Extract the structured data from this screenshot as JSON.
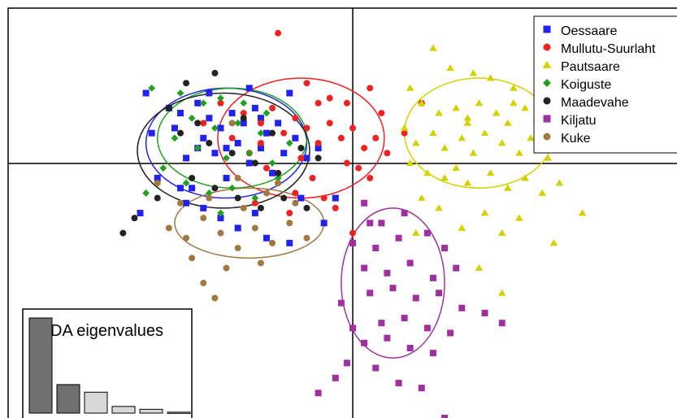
{
  "chart_data": {
    "type": "scatter",
    "title": "",
    "xlabel": "",
    "ylabel": "",
    "xlim": [
      -6,
      6
    ],
    "ylim": [
      -5,
      3.2
    ],
    "axes_cross_at": [
      0,
      0
    ],
    "legend_position": "top-right",
    "grid": false,
    "series": [
      {
        "name": "Oessaare",
        "color": "#2222ee",
        "marker": "square",
        "ellipse": {
          "cx": -2.2,
          "cy": 0.5,
          "rx": 1.4,
          "ry": 1.1
        },
        "points": [
          [
            -3.6,
            1.5
          ],
          [
            -3.5,
            0.7
          ],
          [
            -3.2,
            1.2
          ],
          [
            -3.1,
            0.8
          ],
          [
            -3.0,
            1.1
          ],
          [
            -2.9,
            0.2
          ],
          [
            -2.8,
            -0.4
          ],
          [
            -2.7,
            1.3
          ],
          [
            -2.6,
            0.6
          ],
          [
            -2.5,
            1.0
          ],
          [
            -2.4,
            0.3
          ],
          [
            -2.3,
            0.8
          ],
          [
            -2.2,
            -0.2
          ],
          [
            -2.1,
            1.1
          ],
          [
            -2.0,
            0.5
          ],
          [
            -1.9,
            0.9
          ],
          [
            -1.8,
            0.1
          ],
          [
            -1.7,
            1.2
          ],
          [
            -1.6,
            0.4
          ],
          [
            -1.5,
            0.7
          ],
          [
            -1.4,
            -0.1
          ],
          [
            -1.3,
            0.9
          ],
          [
            -1.2,
            0.3
          ],
          [
            -1.1,
            1.5
          ],
          [
            -1.0,
            0.6
          ],
          [
            -0.9,
            -0.6
          ],
          [
            -0.8,
            0.2
          ],
          [
            -2.9,
            -0.7
          ],
          [
            -2.6,
            -0.8
          ],
          [
            -2.3,
            -1.0
          ],
          [
            -2.0,
            -1.2
          ],
          [
            -1.7,
            -0.9
          ],
          [
            -1.5,
            -1.4
          ],
          [
            -1.1,
            -1.5
          ],
          [
            -3.4,
            -0.2
          ],
          [
            -3.7,
            -0.9
          ],
          [
            -1.8,
            1.6
          ],
          [
            -2.5,
            1.5
          ],
          [
            -0.5,
            -1.1
          ],
          [
            -0.3,
            -0.6
          ],
          [
            -2.7,
            0.4
          ],
          [
            -2.2,
            0.4
          ],
          [
            -1.6,
            1.0
          ],
          [
            -0.6,
            0.4
          ],
          [
            -3.0,
            -0.4
          ]
        ]
      },
      {
        "name": "Mullutu-Suurlaht",
        "color": "#ee2222",
        "marker": "circle",
        "ellipse": {
          "cx": -0.9,
          "cy": 0.6,
          "rx": 1.45,
          "ry": 1.2
        },
        "points": [
          [
            -1.3,
            2.7
          ],
          [
            -0.8,
            1.7
          ],
          [
            -0.4,
            1.4
          ],
          [
            -0.1,
            1.3
          ],
          [
            0.3,
            1.6
          ],
          [
            -1.9,
            1.1
          ],
          [
            -1.6,
            0.9
          ],
          [
            -1.4,
            1.2
          ],
          [
            -1.2,
            0.7
          ],
          [
            -1.0,
            1.0
          ],
          [
            -0.8,
            0.8
          ],
          [
            -0.6,
            0.5
          ],
          [
            -0.4,
            0.9
          ],
          [
            -0.2,
            0.6
          ],
          [
            0.0,
            0.8
          ],
          [
            0.2,
            0.4
          ],
          [
            0.4,
            0.6
          ],
          [
            0.6,
            0.3
          ],
          [
            0.9,
            0.7
          ],
          [
            -2.1,
            0.6
          ],
          [
            -1.8,
            0.3
          ],
          [
            -1.5,
            0.0
          ],
          [
            -1.3,
            -0.3
          ],
          [
            -1.0,
            -0.5
          ],
          [
            -0.7,
            -0.2
          ],
          [
            -0.5,
            -0.6
          ],
          [
            -0.3,
            -0.8
          ],
          [
            -0.1,
            0.1
          ],
          [
            0.1,
            0.0
          ],
          [
            0.3,
            -0.2
          ],
          [
            -2.3,
            1.3
          ],
          [
            -2.6,
            0.9
          ],
          [
            -1.7,
            -0.7
          ],
          [
            -1.1,
            -0.9
          ],
          [
            0.0,
            -1.3
          ],
          [
            0.5,
            1.1
          ],
          [
            1.2,
            1.3
          ],
          [
            -0.6,
            1.3
          ],
          [
            -1.6,
            0.5
          ],
          [
            -0.9,
            0.2
          ]
        ]
      },
      {
        "name": "Pautsaare",
        "color": "#d2d200",
        "marker": "triangle",
        "ellipse": {
          "cx": 2.2,
          "cy": 0.7,
          "rx": 1.3,
          "ry": 1.1
        },
        "points": [
          [
            1.4,
            2.4
          ],
          [
            1.7,
            2.0
          ],
          [
            2.1,
            1.9
          ],
          [
            2.4,
            1.8
          ],
          [
            2.8,
            1.6
          ],
          [
            3.3,
            1.8
          ],
          [
            3.8,
            1.7
          ],
          [
            4.1,
            1.4
          ],
          [
            4.3,
            1.0
          ],
          [
            1.0,
            1.6
          ],
          [
            1.2,
            1.3
          ],
          [
            1.5,
            1.1
          ],
          [
            1.8,
            1.2
          ],
          [
            2.0,
            1.0
          ],
          [
            2.2,
            1.3
          ],
          [
            2.5,
            1.1
          ],
          [
            2.7,
            0.9
          ],
          [
            3.0,
            1.2
          ],
          [
            3.2,
            1.0
          ],
          [
            3.5,
            0.8
          ],
          [
            0.9,
            0.8
          ],
          [
            1.1,
            0.5
          ],
          [
            1.4,
            0.7
          ],
          [
            1.6,
            0.4
          ],
          [
            1.9,
            0.6
          ],
          [
            2.1,
            0.3
          ],
          [
            2.3,
            0.7
          ],
          [
            2.6,
            0.5
          ],
          [
            2.9,
            0.3
          ],
          [
            3.1,
            0.6
          ],
          [
            3.4,
            0.2
          ],
          [
            3.7,
            0.4
          ],
          [
            1.0,
            0.1
          ],
          [
            1.3,
            -0.1
          ],
          [
            1.6,
            -0.2
          ],
          [
            1.8,
            0.0
          ],
          [
            2.0,
            -0.3
          ],
          [
            2.4,
            -0.1
          ],
          [
            2.7,
            -0.4
          ],
          [
            3.0,
            -0.2
          ],
          [
            3.3,
            -0.5
          ],
          [
            3.6,
            -0.3
          ],
          [
            1.2,
            -0.6
          ],
          [
            1.5,
            -0.8
          ],
          [
            2.3,
            -0.9
          ],
          [
            2.9,
            -1.0
          ],
          [
            4.0,
            -0.9
          ],
          [
            1.9,
            -1.2
          ],
          [
            2.6,
            -1.3
          ],
          [
            3.5,
            -1.5
          ],
          [
            2.2,
            -2.0
          ],
          [
            2.6,
            -2.5
          ],
          [
            1.1,
            -1.3
          ],
          [
            2.0,
            0.9
          ],
          [
            2.8,
            1.3
          ]
        ]
      },
      {
        "name": "Koiguste",
        "color": "#22a022",
        "marker": "diamond",
        "ellipse": {
          "cx": -2.1,
          "cy": 0.6,
          "rx": 1.3,
          "ry": 1.0
        },
        "points": [
          [
            -3.5,
            1.6
          ],
          [
            -3.0,
            1.5
          ],
          [
            -2.6,
            1.3
          ],
          [
            -2.3,
            1.4
          ],
          [
            -1.9,
            1.3
          ],
          [
            -2.8,
            1.0
          ],
          [
            -2.4,
            0.8
          ],
          [
            -2.0,
            0.9
          ],
          [
            -1.6,
            0.7
          ],
          [
            -3.1,
            0.6
          ],
          [
            -2.7,
            0.4
          ],
          [
            -2.2,
            0.2
          ],
          [
            -1.8,
            0.3
          ],
          [
            -1.4,
            0.1
          ],
          [
            -3.3,
            0.0
          ],
          [
            -2.9,
            -0.3
          ],
          [
            -2.5,
            -0.5
          ],
          [
            -2.1,
            -0.4
          ],
          [
            -1.7,
            -0.6
          ],
          [
            -1.3,
            -0.2
          ],
          [
            -1.1,
            0.5
          ],
          [
            -3.6,
            -0.5
          ],
          [
            -2.3,
            -0.9
          ],
          [
            -1.5,
            1.1
          ]
        ]
      },
      {
        "name": "Maadevahe",
        "color": "#222222",
        "marker": "circle",
        "ellipse": {
          "cx": -2.25,
          "cy": 0.35,
          "rx": 1.5,
          "ry": 1.15
        },
        "points": [
          [
            -2.4,
            1.9
          ],
          [
            -2.9,
            1.7
          ],
          [
            -3.2,
            1.2
          ],
          [
            -2.7,
            0.9
          ],
          [
            -3.0,
            0.7
          ],
          [
            -2.5,
            0.5
          ],
          [
            -2.1,
            0.3
          ],
          [
            -1.7,
            0.1
          ],
          [
            -1.3,
            -0.1
          ],
          [
            -0.9,
            0.4
          ],
          [
            -0.6,
            0.2
          ],
          [
            -2.8,
            -0.2
          ],
          [
            -2.4,
            -0.4
          ],
          [
            -2.0,
            -0.6
          ],
          [
            -1.6,
            -0.8
          ],
          [
            -1.2,
            -0.6
          ],
          [
            -0.8,
            -0.8
          ],
          [
            -4.0,
            -1.3
          ],
          [
            -3.8,
            -1.0
          ],
          [
            -1.9,
            1.0
          ],
          [
            -1.4,
            0.7
          ],
          [
            -3.4,
            -0.6
          ]
        ]
      },
      {
        "name": "Kiljatu",
        "color": "#a030a0",
        "marker": "square",
        "ellipse": {
          "cx": 0.7,
          "cy": -2.3,
          "rx": 0.9,
          "ry": 1.5
        },
        "points": [
          [
            0.2,
            -0.7
          ],
          [
            0.5,
            -1.1
          ],
          [
            0.9,
            -0.9
          ],
          [
            0.0,
            -1.5
          ],
          [
            0.4,
            -1.6
          ],
          [
            0.8,
            -1.4
          ],
          [
            1.3,
            -1.3
          ],
          [
            1.6,
            -1.6
          ],
          [
            0.2,
            -2.0
          ],
          [
            0.6,
            -2.1
          ],
          [
            1.0,
            -1.9
          ],
          [
            1.4,
            -2.2
          ],
          [
            0.3,
            -2.5
          ],
          [
            0.7,
            -2.4
          ],
          [
            1.1,
            -2.6
          ],
          [
            1.5,
            -2.5
          ],
          [
            1.9,
            -2.8
          ],
          [
            -0.2,
            -2.7
          ],
          [
            0.5,
            -3.1
          ],
          [
            0.9,
            -3.0
          ],
          [
            1.3,
            -3.2
          ],
          [
            1.7,
            -3.3
          ],
          [
            0.2,
            -3.5
          ],
          [
            0.6,
            -3.4
          ],
          [
            1.0,
            -3.6
          ],
          [
            1.4,
            -3.7
          ],
          [
            0.4,
            -4.0
          ],
          [
            0.8,
            -4.3
          ],
          [
            1.2,
            -4.4
          ],
          [
            -0.3,
            -4.2
          ],
          [
            -0.6,
            -4.5
          ],
          [
            1.6,
            -5.0
          ],
          [
            -0.1,
            -3.9
          ],
          [
            2.3,
            -2.9
          ],
          [
            2.6,
            -3.1
          ],
          [
            1.8,
            -2.0
          ],
          [
            0.0,
            -3.2
          ],
          [
            0.3,
            -1.1
          ]
        ]
      },
      {
        "name": "Kuke",
        "color": "#a07840",
        "marker": "circle",
        "ellipse": {
          "cx": -1.8,
          "cy": -1.1,
          "rx": 1.3,
          "ry": 0.7
        },
        "points": [
          [
            -3.2,
            -1.2
          ],
          [
            -2.9,
            -1.4
          ],
          [
            -2.6,
            -1.0
          ],
          [
            -2.3,
            -1.3
          ],
          [
            -2.0,
            -1.6
          ],
          [
            -1.7,
            -1.2
          ],
          [
            -1.4,
            -1.5
          ],
          [
            -1.1,
            -1.1
          ],
          [
            -0.8,
            -1.4
          ],
          [
            -3.0,
            -0.7
          ],
          [
            -2.5,
            -0.6
          ],
          [
            -1.9,
            -0.8
          ],
          [
            -1.5,
            -0.5
          ],
          [
            -2.8,
            -1.8
          ],
          [
            -2.2,
            -2.0
          ],
          [
            -1.6,
            -1.9
          ],
          [
            -2.6,
            -2.3
          ],
          [
            -2.4,
            -2.6
          ],
          [
            -1.3,
            -0.3
          ],
          [
            -2.1,
            0.9
          ],
          [
            -3.4,
            -0.3
          ],
          [
            -2.0,
            -0.2
          ],
          [
            -1.0,
            -0.7
          ]
        ]
      }
    ],
    "inset": {
      "title": "DA eigenvalues",
      "type": "bar",
      "values": [
        100,
        30,
        22,
        7,
        4,
        1
      ],
      "colors": [
        "#707070",
        "#707070",
        "#d8d8d8",
        "#d8d8d8",
        "#d8d8d8",
        "#d8d8d8"
      ]
    }
  }
}
